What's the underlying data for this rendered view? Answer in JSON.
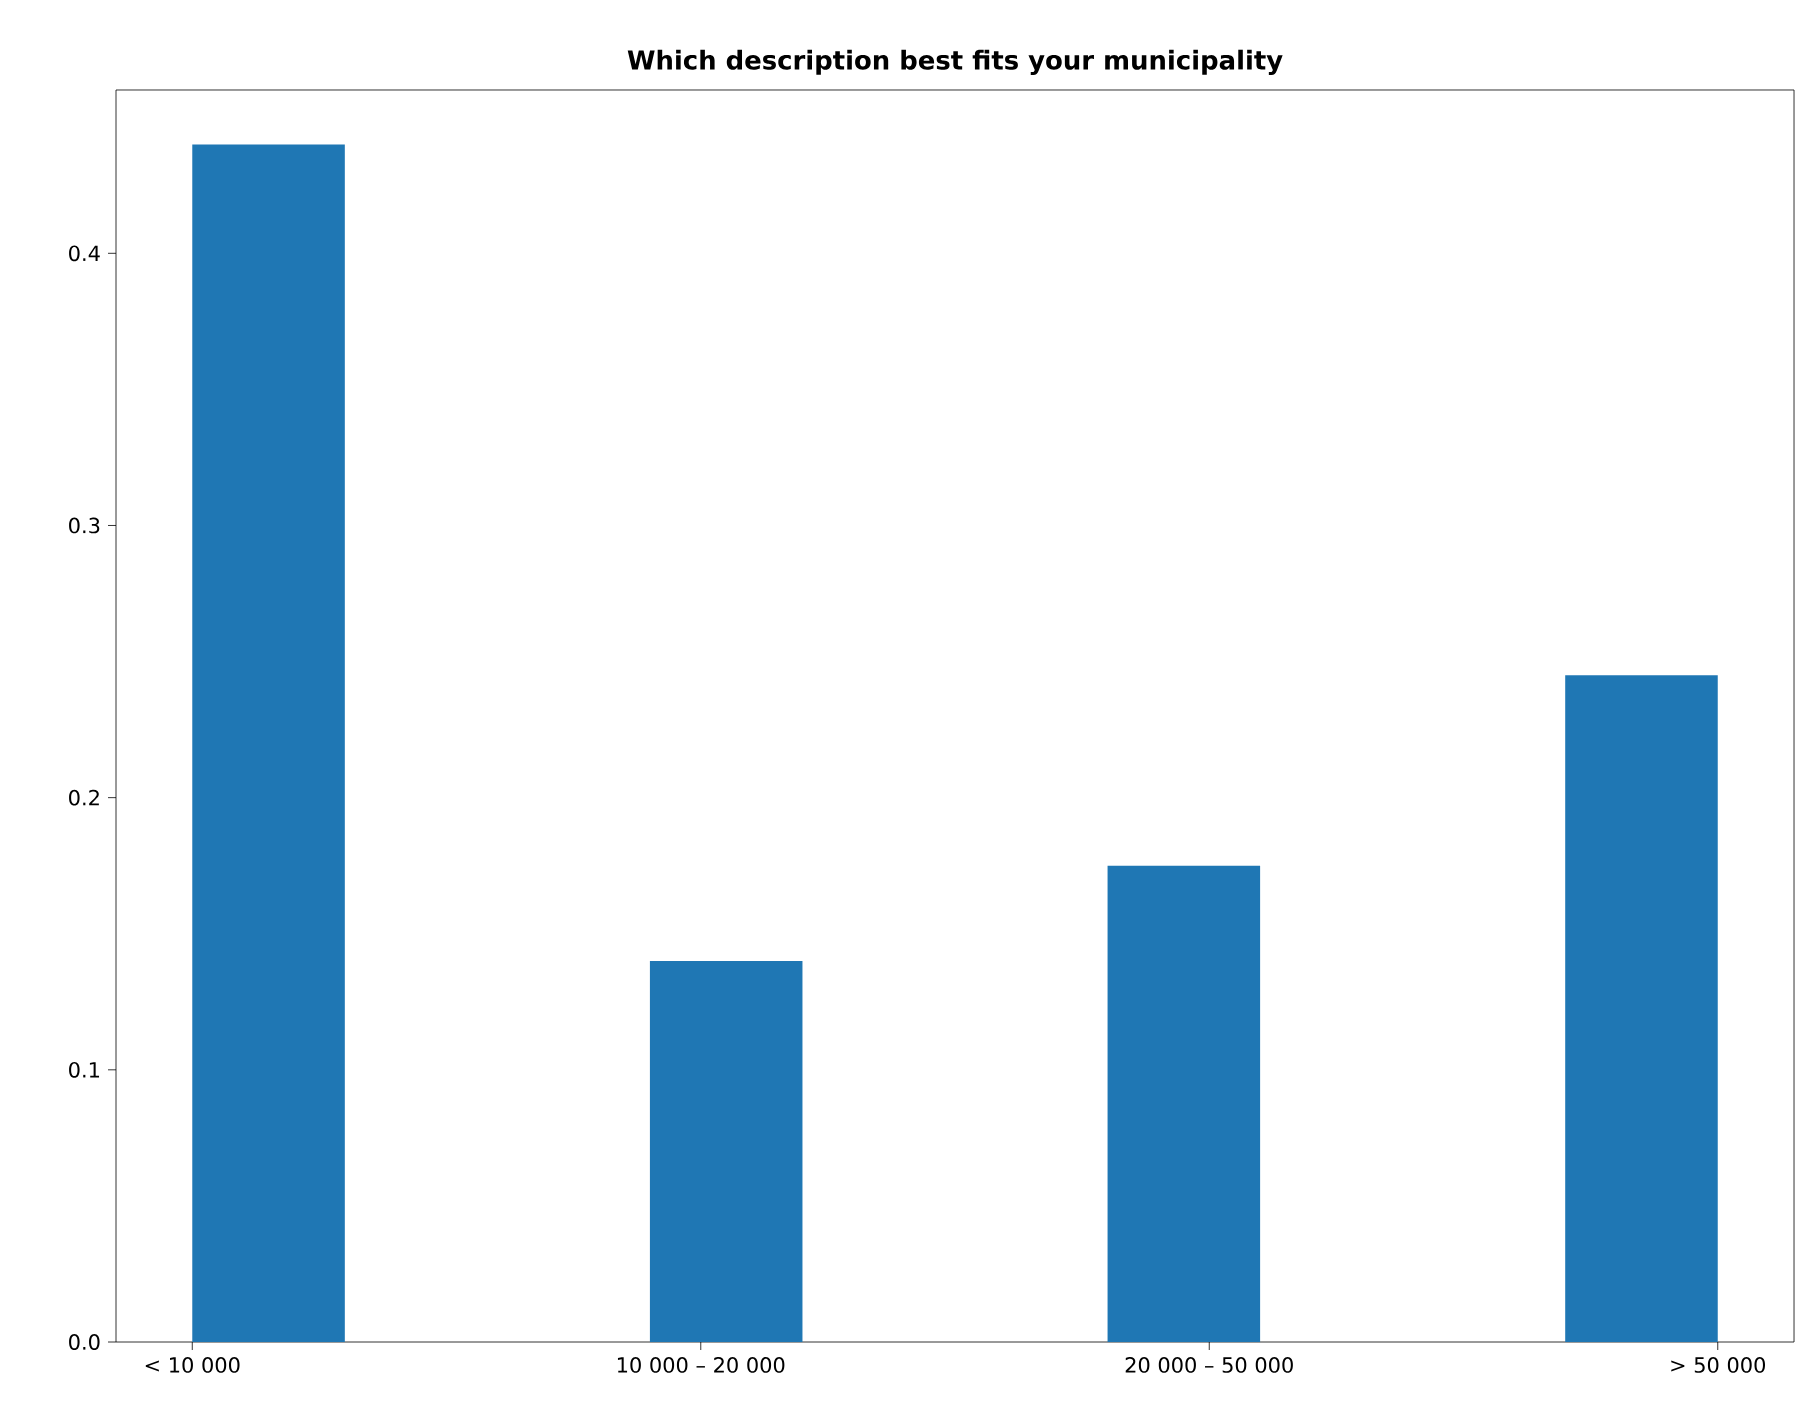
{
  "chart_data": {
    "type": "bar",
    "title": "Which description best fits your municipality",
    "categories": [
      "< 10 000",
      "10 000 – 20 000",
      "20 000 – 50 000",
      "> 50 000"
    ],
    "values": [
      0.44,
      0.14,
      0.175,
      0.245
    ],
    "color": "#1f77b4",
    "ylim": [
      0,
      0.46
    ],
    "yticks": [
      {
        "value": 0,
        "label": "0.0"
      },
      {
        "value": 0.1,
        "label": "0.1"
      },
      {
        "value": 0.2,
        "label": "0.2"
      },
      {
        "value": 0.3,
        "label": "0.3"
      },
      {
        "value": 0.4,
        "label": "0.4"
      }
    ],
    "grid": false
  }
}
